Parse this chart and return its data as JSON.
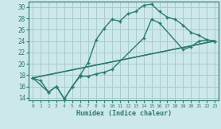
{
  "xlabel": "Humidex (Indice chaleur)",
  "bg_color": "#cce8e8",
  "grid_color": "#aacccc",
  "line_color": "#2d7a6a",
  "xlim": [
    -0.5,
    23.5
  ],
  "ylim": [
    13.5,
    31.0
  ],
  "xticks": [
    0,
    1,
    2,
    3,
    4,
    5,
    6,
    7,
    8,
    9,
    10,
    11,
    12,
    13,
    14,
    15,
    16,
    17,
    18,
    19,
    20,
    21,
    22,
    23
  ],
  "yticks": [
    14,
    16,
    18,
    20,
    22,
    24,
    26,
    28,
    30
  ],
  "lines": [
    {
      "x": [
        0,
        1,
        2,
        3,
        4,
        5,
        6,
        7,
        8,
        9,
        10,
        11,
        12,
        13,
        14,
        15,
        16,
        17,
        18,
        19,
        20,
        21,
        22,
        23
      ],
      "y": [
        17.5,
        17.0,
        15.0,
        16.0,
        13.8,
        16.0,
        18.0,
        20.2,
        24.2,
        26.2,
        27.8,
        27.5,
        28.8,
        29.2,
        30.3,
        30.5,
        29.2,
        28.2,
        27.8,
        26.8,
        25.5,
        25.0,
        24.2,
        24.0
      ],
      "marker": true
    },
    {
      "x": [
        0,
        2,
        3,
        4,
        5,
        6,
        7,
        8,
        9,
        10,
        14,
        15,
        16,
        19,
        20,
        21,
        22,
        23
      ],
      "y": [
        17.5,
        15.0,
        16.0,
        13.8,
        16.0,
        17.8,
        17.8,
        18.2,
        18.5,
        19.0,
        24.5,
        27.8,
        27.2,
        22.5,
        23.0,
        24.0,
        24.2,
        24.0
      ],
      "marker": true
    },
    {
      "x": [
        0,
        23
      ],
      "y": [
        17.5,
        24.0
      ],
      "marker": false
    },
    {
      "x": [
        0,
        23
      ],
      "y": [
        17.5,
        24.0
      ],
      "marker": false
    }
  ]
}
